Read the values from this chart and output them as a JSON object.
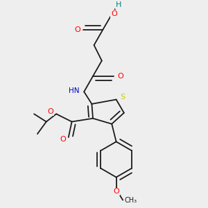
{
  "background_color": "#eeeeee",
  "bond_color": "#1a1a1a",
  "bond_width": 1.3,
  "colors": {
    "O": "#ff0000",
    "N": "#0000cc",
    "S": "#cccc00",
    "H": "#008080",
    "C": "#1a1a1a"
  },
  "figsize": [
    3.0,
    3.0
  ],
  "dpi": 100
}
